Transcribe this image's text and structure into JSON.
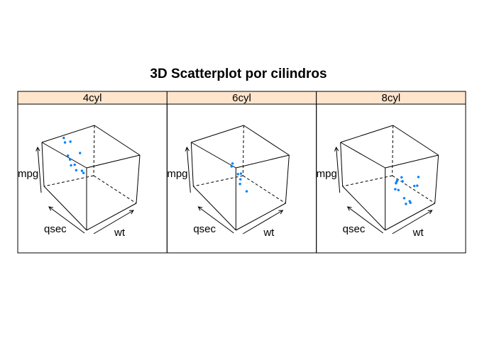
{
  "title": "3D Scatterplot por cilindros",
  "colors": {
    "strip_background": "#ffe5cc",
    "point": "#0080ff",
    "frame": "#000000"
  },
  "chart_data": {
    "type": "scatter",
    "title": "3D Scatterplot por cilindros",
    "axes": {
      "x": "wt",
      "y": "qsec",
      "z": "mpg"
    },
    "xlim": [
      1.5,
      5.5
    ],
    "ylim": [
      14.5,
      23
    ],
    "zlim": [
      10,
      34
    ],
    "panels": [
      {
        "label": "4cyl",
        "points": [
          {
            "wt": 2.32,
            "qsec": 18.61,
            "mpg": 22.8
          },
          {
            "wt": 3.19,
            "qsec": 20.0,
            "mpg": 24.4
          },
          {
            "wt": 3.15,
            "qsec": 22.9,
            "mpg": 22.8
          },
          {
            "wt": 2.2,
            "qsec": 19.47,
            "mpg": 32.4
          },
          {
            "wt": 1.62,
            "qsec": 18.52,
            "mpg": 30.4
          },
          {
            "wt": 1.84,
            "qsec": 19.9,
            "mpg": 33.9
          },
          {
            "wt": 2.47,
            "qsec": 20.01,
            "mpg": 21.5
          },
          {
            "wt": 1.94,
            "qsec": 18.9,
            "mpg": 27.3
          },
          {
            "wt": 2.14,
            "qsec": 16.7,
            "mpg": 26.0
          },
          {
            "wt": 1.51,
            "qsec": 16.9,
            "mpg": 30.4
          },
          {
            "wt": 2.78,
            "qsec": 18.6,
            "mpg": 21.4
          }
        ]
      },
      {
        "label": "6cyl",
        "points": [
          {
            "wt": 2.62,
            "qsec": 16.46,
            "mpg": 21.0
          },
          {
            "wt": 2.88,
            "qsec": 17.02,
            "mpg": 21.0
          },
          {
            "wt": 3.22,
            "qsec": 19.44,
            "mpg": 21.4
          },
          {
            "wt": 3.46,
            "qsec": 20.22,
            "mpg": 18.1
          },
          {
            "wt": 3.44,
            "qsec": 18.3,
            "mpg": 19.2
          },
          {
            "wt": 3.44,
            "qsec": 18.9,
            "mpg": 17.8
          },
          {
            "wt": 2.77,
            "qsec": 15.5,
            "mpg": 19.7
          }
        ]
      },
      {
        "label": "8cyl",
        "points": [
          {
            "wt": 3.44,
            "qsec": 17.02,
            "mpg": 18.7
          },
          {
            "wt": 3.57,
            "qsec": 15.84,
            "mpg": 14.3
          },
          {
            "wt": 4.07,
            "qsec": 17.4,
            "mpg": 16.4
          },
          {
            "wt": 3.73,
            "qsec": 17.6,
            "mpg": 17.3
          },
          {
            "wt": 3.78,
            "qsec": 18.0,
            "mpg": 15.2
          },
          {
            "wt": 5.25,
            "qsec": 17.98,
            "mpg": 10.4
          },
          {
            "wt": 5.42,
            "qsec": 17.82,
            "mpg": 10.4
          },
          {
            "wt": 5.35,
            "qsec": 17.42,
            "mpg": 14.7
          },
          {
            "wt": 3.52,
            "qsec": 16.87,
            "mpg": 15.5
          },
          {
            "wt": 3.44,
            "qsec": 17.3,
            "mpg": 15.2
          },
          {
            "wt": 3.84,
            "qsec": 15.41,
            "mpg": 13.3
          },
          {
            "wt": 3.85,
            "qsec": 17.05,
            "mpg": 19.2
          },
          {
            "wt": 3.17,
            "qsec": 14.5,
            "mpg": 15.8
          },
          {
            "wt": 3.57,
            "qsec": 14.6,
            "mpg": 15.0
          }
        ]
      }
    ]
  }
}
